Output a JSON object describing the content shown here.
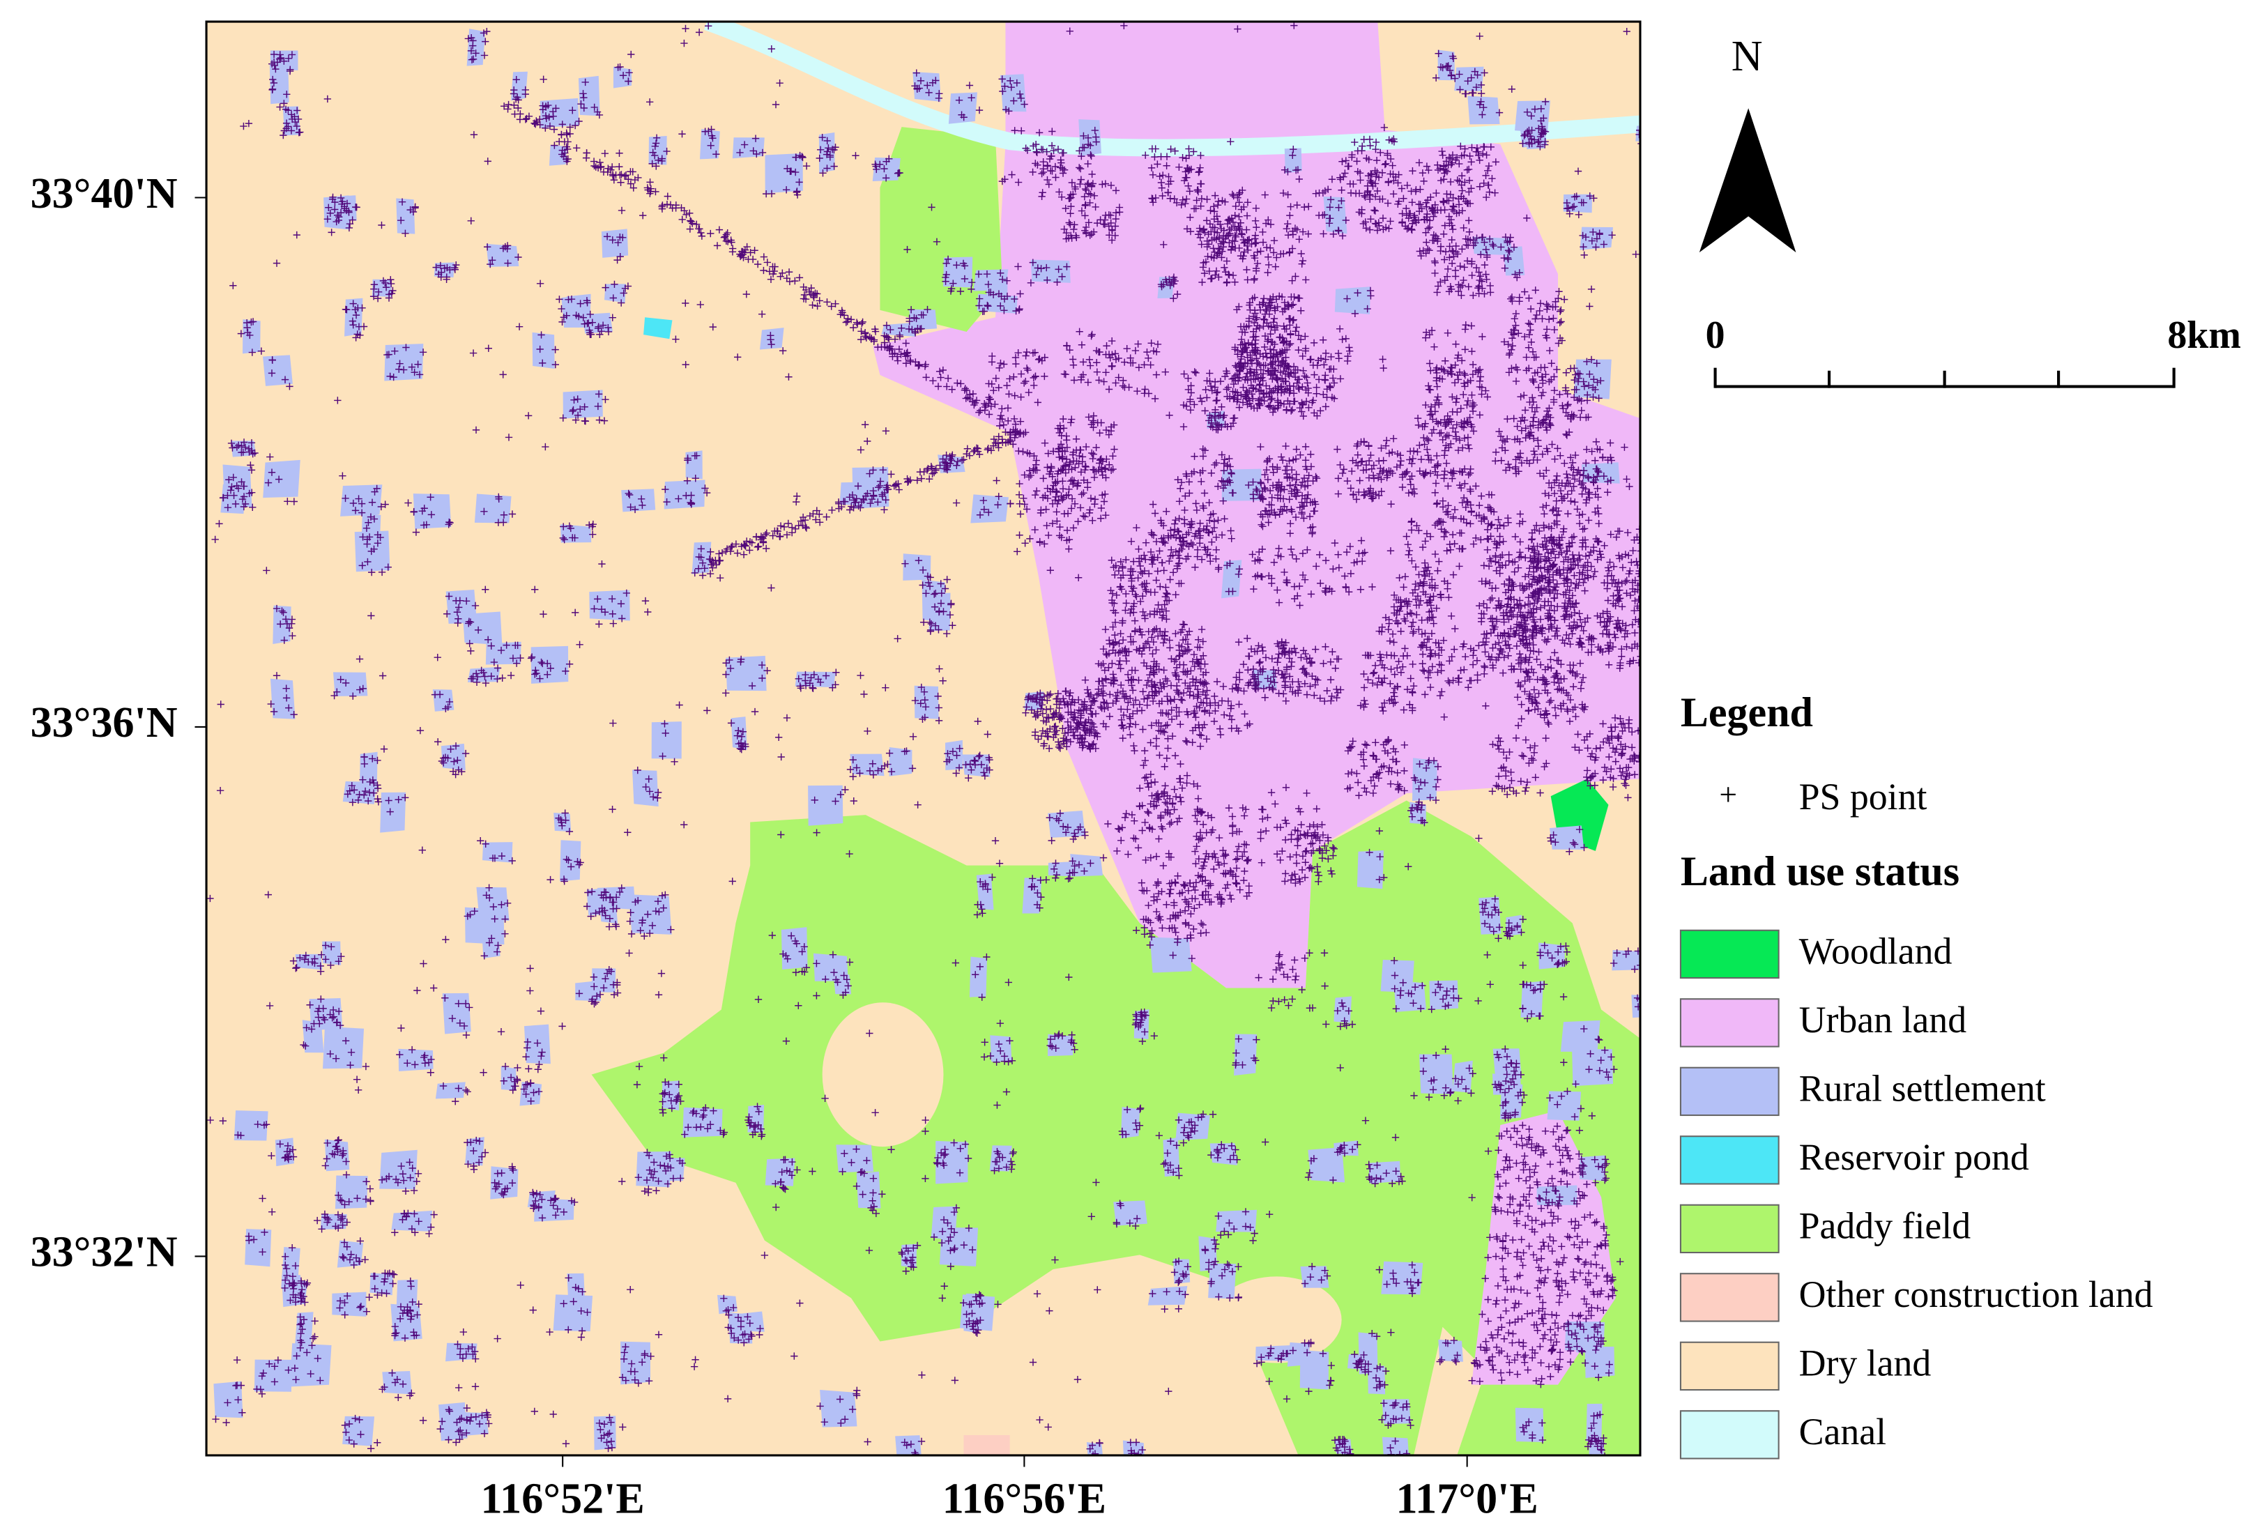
{
  "map": {
    "lat_labels": [
      "33°40'N",
      "33°36'N",
      "33°32'N"
    ],
    "lon_labels": [
      "116°52'E",
      "116°56'E",
      "117°0'E"
    ],
    "north_arrow": "N",
    "scale_bar": {
      "start": "0",
      "end": "8km"
    },
    "legend": {
      "title": "Legend",
      "point_symbol": "+",
      "point_label": "PS point",
      "point_color": "#52087a",
      "land_use_title": "Land use status",
      "items": [
        {
          "label": "Woodland",
          "color": "#06e855"
        },
        {
          "label": "Urban land",
          "color": "#f0b8f8"
        },
        {
          "label": "Rural settlement",
          "color": "#b4c0f6"
        },
        {
          "label": "Reservoir pond",
          "color": "#4de6f6"
        },
        {
          "label": "Paddy field",
          "color": "#aef56c"
        },
        {
          "label": "Other construction land",
          "color": "#fdcfc3"
        },
        {
          "label": "Dry land",
          "color": "#fde3bd"
        },
        {
          "label": "Canal",
          "color": "#d2fbfb"
        }
      ]
    }
  }
}
